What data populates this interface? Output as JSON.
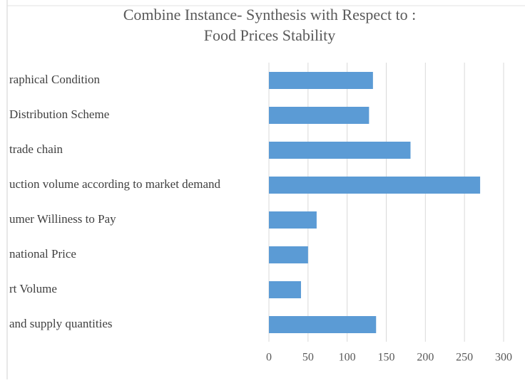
{
  "chart_data": {
    "type": "barh",
    "title": [
      "Combine Instance- Synthesis with Respect to :",
      "Food Prices Stability"
    ],
    "categories": [
      "raphical Condition",
      "Distribution Scheme",
      "trade chain",
      "uction volume according to market demand",
      "umer Williness to Pay",
      "national Price",
      "rt Volume",
      "and supply quantities"
    ],
    "values": [
      133,
      128,
      181,
      270,
      61,
      50,
      41,
      137
    ],
    "color": "#5b9bd5",
    "xlim": [
      0,
      300
    ],
    "xticks": [
      0,
      50,
      100,
      150,
      200,
      250,
      300
    ],
    "grid": true
  }
}
